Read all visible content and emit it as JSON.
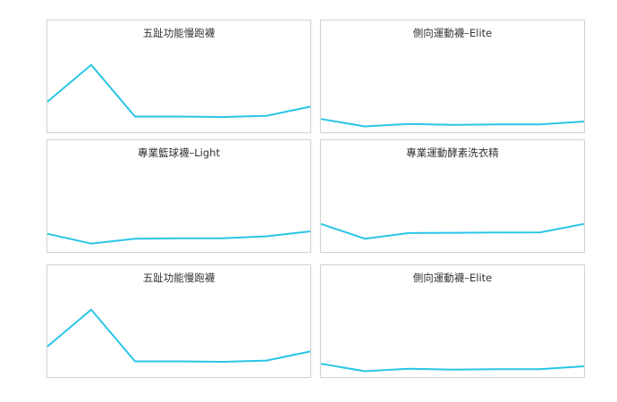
{
  "colors": {
    "line": "#29c5e6",
    "border": "#d4d4d4",
    "title": "#333333"
  },
  "chart_data": [
    {
      "type": "line",
      "title": "五趾功能慢跑襪",
      "x": [
        1,
        2,
        3,
        4,
        5,
        6,
        7
      ],
      "values": [
        12,
        27,
        6,
        6,
        5.8,
        6.3,
        10
      ],
      "ylim": [
        0,
        45
      ]
    },
    {
      "type": "line",
      "title": "側向運動襪–Elite",
      "x": [
        1,
        2,
        3,
        4,
        5,
        6,
        7
      ],
      "values": [
        5,
        2,
        3,
        2.6,
        2.8,
        2.8,
        4
      ],
      "ylim": [
        0,
        45
      ]
    },
    {
      "type": "line",
      "title": "專業籃球襪–Light",
      "x": [
        1,
        2,
        3,
        4,
        5,
        6,
        7
      ],
      "values": [
        7,
        3,
        5,
        5.2,
        5.2,
        6,
        8
      ],
      "ylim": [
        0,
        45
      ]
    },
    {
      "type": "line",
      "title": "專業運動酵素洗衣精",
      "x": [
        1,
        2,
        3,
        4,
        5,
        6,
        7
      ],
      "values": [
        11,
        5,
        7.3,
        7.4,
        7.5,
        7.6,
        11
      ],
      "ylim": [
        0,
        45
      ]
    },
    {
      "type": "line",
      "title": "五趾功能慢跑襪",
      "x": [
        1,
        2,
        3,
        4,
        5,
        6,
        7
      ],
      "values": [
        12,
        27,
        6,
        6,
        5.8,
        6.3,
        10
      ],
      "ylim": [
        0,
        45
      ]
    },
    {
      "type": "line",
      "title": "側向運動襪–Elite",
      "x": [
        1,
        2,
        3,
        4,
        5,
        6,
        7
      ],
      "values": [
        5,
        2,
        3,
        2.6,
        2.8,
        2.8,
        4
      ],
      "ylim": [
        0,
        45
      ]
    }
  ]
}
